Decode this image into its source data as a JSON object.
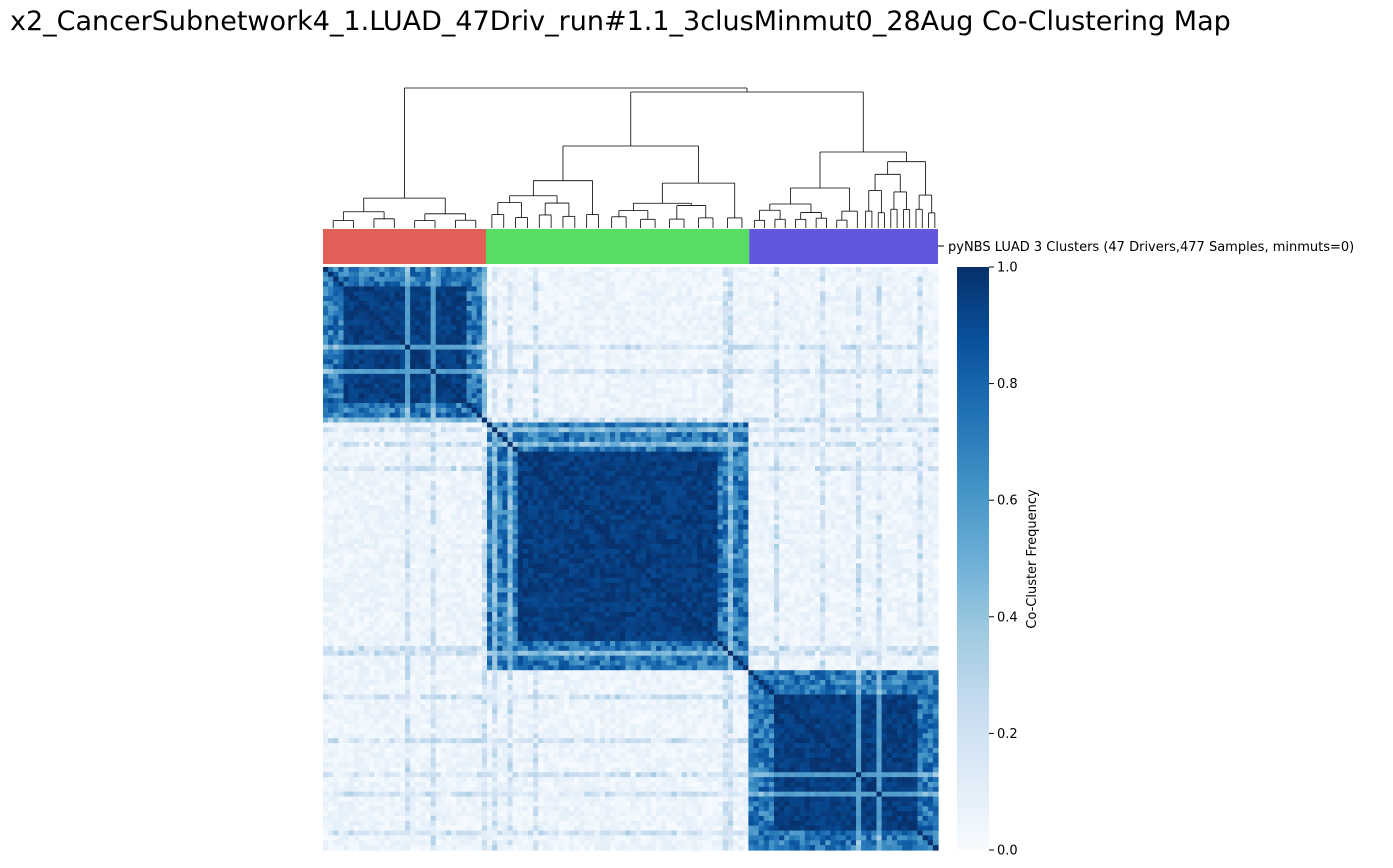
{
  "title": "x2_CancerSubnetwork4_1.LUAD_47Driv_run#1.1_3clusMinmut0_28Aug Co-Clustering Map",
  "chart_data": {
    "type": "heatmap",
    "matrix_size": 477,
    "cluster_row_label": "pyNBS LUAD 3 Clusters (47 Drivers,477 Samples, minmuts=0)",
    "clusters": [
      {
        "color": "#e05f57",
        "fraction": 0.265
      },
      {
        "color": "#57dd62",
        "fraction": 0.428
      },
      {
        "color": "#6157dd",
        "fraction": 0.307
      }
    ],
    "colorbar": {
      "label": "Co-Cluster Frequency",
      "range": [
        0,
        1
      ],
      "ticks": [
        "0.0",
        "0.2",
        "0.4",
        "0.6",
        "0.8",
        "1.0"
      ],
      "colormap": "Blues"
    },
    "within_cluster_frequency": 0.9,
    "between_cluster_frequency": 0.05,
    "dendrogram": true
  }
}
